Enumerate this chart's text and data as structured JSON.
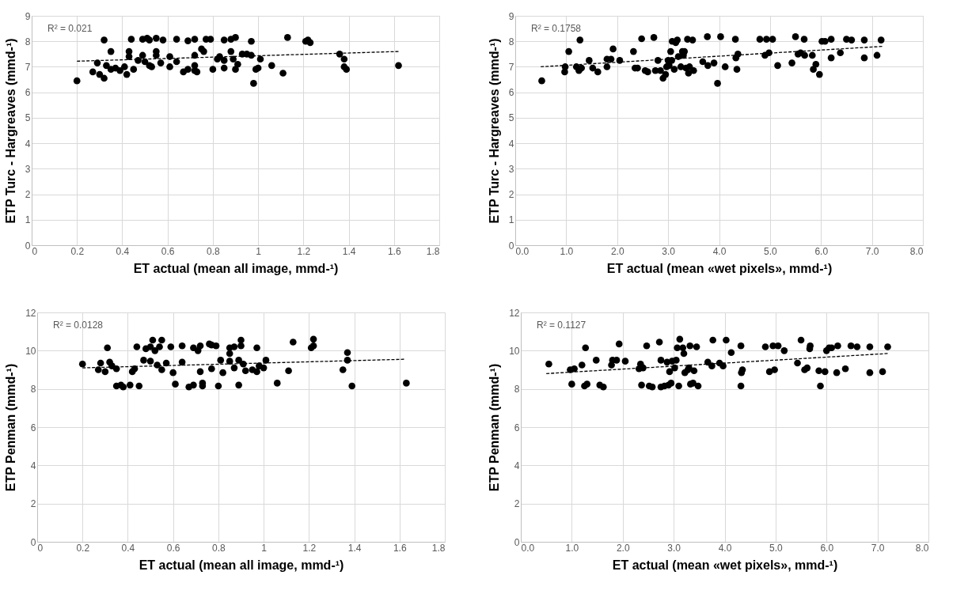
{
  "chart_data": [
    {
      "type": "scatter",
      "xlabel": "ET actual (mean all image, mmd-¹)",
      "ylabel": "ETP Turc - Hargreaves (mmd-¹)",
      "xlim": [
        0,
        1.8
      ],
      "xticks": [
        0,
        0.2,
        0.4,
        0.6,
        0.8,
        1,
        1.2,
        1.4,
        1.6,
        1.8
      ],
      "ylim": [
        0,
        9
      ],
      "yticks": [
        0,
        1,
        2,
        3,
        4,
        5,
        6,
        7,
        8,
        9
      ],
      "grid": true,
      "annotations": [
        "R² = 0.021"
      ],
      "series": [
        {
          "type": "scatter",
          "marker": "circle",
          "color": "#000000",
          "x": [
            0.2,
            0.27,
            0.29,
            0.3,
            0.32,
            0.32,
            0.33,
            0.35,
            0.35,
            0.37,
            0.39,
            0.41,
            0.42,
            0.43,
            0.43,
            0.44,
            0.45,
            0.47,
            0.49,
            0.49,
            0.5,
            0.51,
            0.52,
            0.52,
            0.53,
            0.55,
            0.55,
            0.55,
            0.57,
            0.58,
            0.61,
            0.61,
            0.64,
            0.64,
            0.67,
            0.69,
            0.69,
            0.72,
            0.72,
            0.72,
            0.72,
            0.73,
            0.75,
            0.76,
            0.77,
            0.79,
            0.8,
            0.82,
            0.83,
            0.85,
            0.85,
            0.85,
            0.88,
            0.88,
            0.89,
            0.9,
            0.9,
            0.91,
            0.93,
            0.95,
            0.97,
            0.97,
            0.98,
            0.99,
            1.0,
            1.01,
            1.06,
            1.11,
            1.13,
            1.21,
            1.22,
            1.23,
            1.36,
            1.38,
            1.38,
            1.39,
            1.62
          ],
          "values": [
            6.45,
            6.8,
            7.15,
            6.7,
            6.55,
            8.05,
            7.05,
            6.9,
            7.6,
            6.95,
            6.85,
            7.0,
            6.7,
            7.4,
            7.6,
            8.08,
            6.9,
            7.25,
            7.45,
            8.08,
            7.2,
            8.12,
            8.05,
            7.05,
            7.0,
            7.6,
            7.45,
            8.12,
            7.15,
            8.05,
            7.0,
            7.4,
            7.2,
            8.08,
            6.8,
            6.9,
            8.02,
            7.05,
            6.85,
            7.45,
            8.08,
            6.8,
            7.7,
            7.6,
            8.08,
            8.08,
            6.9,
            7.3,
            7.4,
            8.05,
            7.25,
            6.95,
            7.6,
            8.08,
            7.3,
            6.9,
            8.15,
            7.1,
            7.5,
            7.5,
            7.45,
            8.0,
            6.35,
            6.9,
            6.95,
            7.3,
            7.05,
            6.75,
            8.15,
            8.0,
            8.05,
            7.95,
            7.5,
            7.3,
            7.0,
            6.9,
            7.05
          ]
        },
        {
          "type": "line",
          "line_style": "dashed",
          "color": "#000000",
          "x": [
            0.2,
            1.62
          ],
          "values": [
            7.22,
            7.6
          ]
        }
      ]
    },
    {
      "type": "scatter",
      "xlabel": "ET actual (mean «wet pixels», mmd-¹)",
      "ylabel": "ETP Turc - Hargreaves (mmd-¹)",
      "xlim": [
        0,
        8
      ],
      "xticks": [
        {
          "value": 0,
          "label": "0.0"
        },
        {
          "value": 1,
          "label": "1.0"
        },
        {
          "value": 2,
          "label": "2.0"
        },
        {
          "value": 3,
          "label": "3.0"
        },
        {
          "value": 4,
          "label": "4.0"
        },
        {
          "value": 5,
          "label": "5.0"
        },
        {
          "value": 6,
          "label": "6.0"
        },
        {
          "value": 7,
          "label": "7.0"
        },
        {
          "value": 8,
          "label": "8.0"
        }
      ],
      "ylim": [
        0,
        9
      ],
      "yticks": [
        0,
        1,
        2,
        3,
        4,
        5,
        6,
        7,
        8,
        9
      ],
      "grid": true,
      "annotations": [
        "R² = 0.1758"
      ],
      "series": [
        {
          "type": "scatter",
          "marker": "circle",
          "color": "#000000",
          "x": [
            0.52,
            0.97,
            0.98,
            1.05,
            1.2,
            1.25,
            1.27,
            1.3,
            1.45,
            1.52,
            1.62,
            1.8,
            1.8,
            1.88,
            1.92,
            2.05,
            2.32,
            2.35,
            2.4,
            2.48,
            2.55,
            2.6,
            2.72,
            2.75,
            2.8,
            2.85,
            2.9,
            2.95,
            2.97,
            3.0,
            3.02,
            3.05,
            3.07,
            3.08,
            3.12,
            3.15,
            3.18,
            3.2,
            3.25,
            3.28,
            3.3,
            3.32,
            3.35,
            3.38,
            3.4,
            3.42,
            3.48,
            3.5,
            3.68,
            3.77,
            3.78,
            3.9,
            3.97,
            4.03,
            4.12,
            4.32,
            4.33,
            4.35,
            4.37,
            4.8,
            4.9,
            4.93,
            4.98,
            5.05,
            5.15,
            5.43,
            5.5,
            5.55,
            5.6,
            5.67,
            5.68,
            5.83,
            5.85,
            5.9,
            5.97,
            6.02,
            6.08,
            6.2,
            6.2,
            6.38,
            6.5,
            6.6,
            6.85,
            6.85,
            7.1,
            7.18
          ],
          "values": [
            6.45,
            6.8,
            7.0,
            7.6,
            7.0,
            6.85,
            8.05,
            6.95,
            7.25,
            6.95,
            6.8,
            7.3,
            7.0,
            7.3,
            7.7,
            7.25,
            7.6,
            6.95,
            6.95,
            8.1,
            6.85,
            6.8,
            8.15,
            6.85,
            7.25,
            6.85,
            6.55,
            6.7,
            7.0,
            7.25,
            7.05,
            7.6,
            7.25,
            8.0,
            6.9,
            7.95,
            8.05,
            7.4,
            7.0,
            7.6,
            7.45,
            7.6,
            6.95,
            8.08,
            6.75,
            7.0,
            8.05,
            6.85,
            7.2,
            8.18,
            7.05,
            7.15,
            6.35,
            8.18,
            7.0,
            8.08,
            7.35,
            6.9,
            7.5,
            8.08,
            7.45,
            8.08,
            7.55,
            8.08,
            7.05,
            7.15,
            8.18,
            7.5,
            7.55,
            8.08,
            7.45,
            7.45,
            6.9,
            7.1,
            6.7,
            8.0,
            8.0,
            8.08,
            7.35,
            7.55,
            8.08,
            8.05,
            8.05,
            7.35,
            7.45,
            8.05
          ]
        },
        {
          "type": "line",
          "line_style": "dashed",
          "color": "#000000",
          "x": [
            0.5,
            7.2
          ],
          "values": [
            7.0,
            7.8
          ]
        }
      ]
    },
    {
      "type": "scatter",
      "xlabel": "ET actual (mean all image, mmd-¹)",
      "ylabel": "ETP Penman (mmd-¹)",
      "xlim": [
        0,
        1.8
      ],
      "xticks": [
        0,
        0.2,
        0.4,
        0.6,
        0.8,
        1,
        1.2,
        1.4,
        1.6,
        1.8
      ],
      "ylim": [
        0,
        12
      ],
      "yticks": [
        0,
        2,
        4,
        6,
        8,
        10,
        12
      ],
      "grid": true,
      "annotations": [
        "R² = 0.0128"
      ],
      "series": [
        {
          "type": "scatter",
          "marker": "circle",
          "color": "#000000",
          "x": [
            0.2,
            0.27,
            0.28,
            0.3,
            0.31,
            0.32,
            0.33,
            0.35,
            0.35,
            0.37,
            0.38,
            0.41,
            0.42,
            0.43,
            0.44,
            0.45,
            0.47,
            0.48,
            0.5,
            0.5,
            0.51,
            0.52,
            0.53,
            0.54,
            0.55,
            0.55,
            0.57,
            0.59,
            0.6,
            0.61,
            0.64,
            0.64,
            0.67,
            0.69,
            0.69,
            0.71,
            0.72,
            0.72,
            0.73,
            0.73,
            0.76,
            0.77,
            0.77,
            0.79,
            0.8,
            0.81,
            0.82,
            0.85,
            0.85,
            0.85,
            0.87,
            0.87,
            0.89,
            0.89,
            0.9,
            0.9,
            0.91,
            0.92,
            0.95,
            0.97,
            0.97,
            0.98,
            1.0,
            1.01,
            1.06,
            1.11,
            1.13,
            1.21,
            1.22,
            1.22,
            1.35,
            1.37,
            1.37,
            1.39,
            1.63
          ],
          "values": [
            9.3,
            9.0,
            9.35,
            8.9,
            10.15,
            9.4,
            9.2,
            9.05,
            8.15,
            8.2,
            8.1,
            8.2,
            8.9,
            9.05,
            10.2,
            8.15,
            9.5,
            10.1,
            10.2,
            9.45,
            10.55,
            10.0,
            9.25,
            10.2,
            9.0,
            10.55,
            9.35,
            10.2,
            8.85,
            8.25,
            9.4,
            10.25,
            8.1,
            8.2,
            10.15,
            10.0,
            8.9,
            10.25,
            8.15,
            8.3,
            10.35,
            9.05,
            10.3,
            10.25,
            8.15,
            9.5,
            8.85,
            9.45,
            9.85,
            10.15,
            9.1,
            10.2,
            8.2,
            9.5,
            10.55,
            10.25,
            9.3,
            8.95,
            9.0,
            8.9,
            10.15,
            9.2,
            9.1,
            9.5,
            8.3,
            8.95,
            10.45,
            10.15,
            10.25,
            10.6,
            9.0,
            9.5,
            9.9,
            8.15,
            8.3
          ]
        },
        {
          "type": "line",
          "line_style": "dashed",
          "color": "#000000",
          "x": [
            0.2,
            1.62
          ],
          "values": [
            9.1,
            9.55
          ]
        }
      ]
    },
    {
      "type": "scatter",
      "xlabel": "ET actual (mean «wet pixels», mmd-¹)",
      "ylabel": "ETP Penman (mmd-¹)",
      "xlim": [
        0,
        8
      ],
      "xticks": [
        {
          "value": 0,
          "label": "0.0"
        },
        {
          "value": 1,
          "label": "1.0"
        },
        {
          "value": 2,
          "label": "2.0"
        },
        {
          "value": 3,
          "label": "3.0"
        },
        {
          "value": 4,
          "label": "4.0"
        },
        {
          "value": 5,
          "label": "5.0"
        },
        {
          "value": 6,
          "label": "6.0"
        },
        {
          "value": 7,
          "label": "7.0"
        },
        {
          "value": 8,
          "label": "8.0"
        }
      ],
      "ylim": [
        0,
        12
      ],
      "yticks": [
        0,
        2,
        4,
        6,
        8,
        10,
        12
      ],
      "grid": true,
      "annotations": [
        "R² = 0.1127"
      ],
      "series": [
        {
          "type": "scatter",
          "marker": "circle",
          "color": "#000000",
          "x": [
            0.55,
            0.97,
            1.0,
            1.05,
            1.2,
            1.25,
            1.27,
            1.3,
            1.48,
            1.55,
            1.62,
            1.78,
            1.8,
            1.88,
            1.93,
            2.05,
            2.32,
            2.35,
            2.37,
            2.4,
            2.47,
            2.52,
            2.58,
            2.72,
            2.75,
            2.75,
            2.82,
            2.87,
            2.9,
            2.92,
            2.95,
            2.97,
            3.02,
            3.05,
            3.07,
            3.1,
            3.12,
            3.18,
            3.2,
            3.22,
            3.28,
            3.3,
            3.32,
            3.33,
            3.38,
            3.4,
            3.45,
            3.48,
            3.67,
            3.75,
            3.77,
            3.9,
            3.97,
            4.03,
            4.13,
            4.32,
            4.32,
            4.33,
            4.35,
            4.8,
            4.88,
            4.95,
            4.98,
            5.05,
            5.17,
            5.43,
            5.5,
            5.57,
            5.62,
            5.67,
            5.68,
            5.85,
            5.88,
            5.97,
            6.0,
            6.05,
            6.1,
            6.2,
            6.22,
            6.37,
            6.48,
            6.6,
            6.85,
            6.85,
            7.1,
            7.2
          ],
          "values": [
            9.3,
            9.0,
            8.25,
            9.05,
            9.25,
            8.15,
            10.15,
            8.25,
            9.5,
            8.2,
            8.1,
            9.25,
            9.5,
            9.5,
            10.35,
            9.45,
            9.05,
            9.3,
            8.2,
            9.1,
            10.25,
            8.15,
            8.1,
            10.45,
            8.1,
            9.5,
            8.15,
            9.4,
            8.2,
            8.9,
            8.3,
            9.45,
            9.1,
            9.5,
            10.15,
            8.15,
            10.6,
            10.15,
            9.85,
            8.85,
            9.0,
            9.1,
            10.25,
            8.25,
            8.3,
            8.95,
            10.2,
            8.15,
            9.4,
            9.2,
            10.55,
            9.35,
            9.2,
            10.55,
            9.9,
            10.25,
            8.15,
            8.85,
            9.0,
            10.2,
            8.9,
            10.25,
            9.0,
            10.25,
            10.0,
            9.35,
            10.55,
            9.0,
            9.1,
            10.1,
            10.25,
            8.95,
            8.15,
            8.9,
            10.0,
            10.15,
            10.15,
            8.85,
            10.25,
            9.05,
            10.25,
            10.2,
            8.85,
            10.2,
            8.9,
            10.2
          ]
        },
        {
          "type": "line",
          "line_style": "dashed",
          "color": "#000000",
          "x": [
            0.5,
            7.2
          ],
          "values": [
            8.8,
            9.85
          ]
        }
      ]
    }
  ]
}
